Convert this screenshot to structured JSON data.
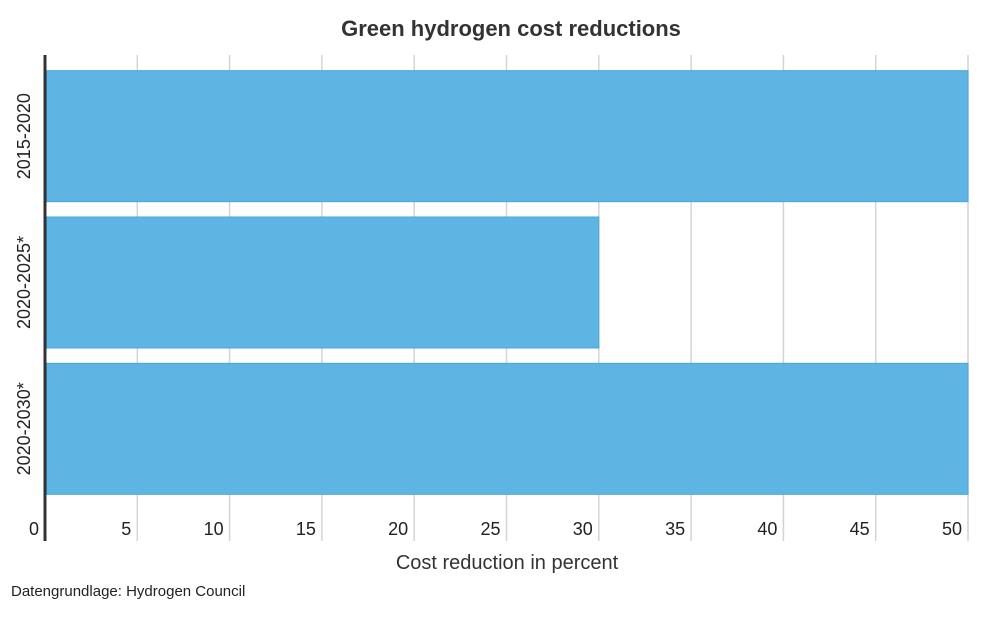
{
  "chart_data": {
    "type": "bar",
    "orientation": "horizontal",
    "title": "Green hydrogen cost reductions",
    "xlabel": "Cost reduction in percent",
    "ylabel": "",
    "categories": [
      "2015-2020",
      "2020-2025*",
      "2020-2030*"
    ],
    "values": [
      50,
      30,
      50
    ],
    "xlim": [
      0,
      50
    ],
    "xticks": [
      0,
      5,
      10,
      15,
      20,
      25,
      30,
      35,
      40,
      45,
      50
    ],
    "grid": true,
    "legend": "none",
    "bar_color": "#5eb5e3",
    "bar_border_color": "#4aa6d8"
  },
  "source": "Datengrundlage: Hydrogen Council"
}
